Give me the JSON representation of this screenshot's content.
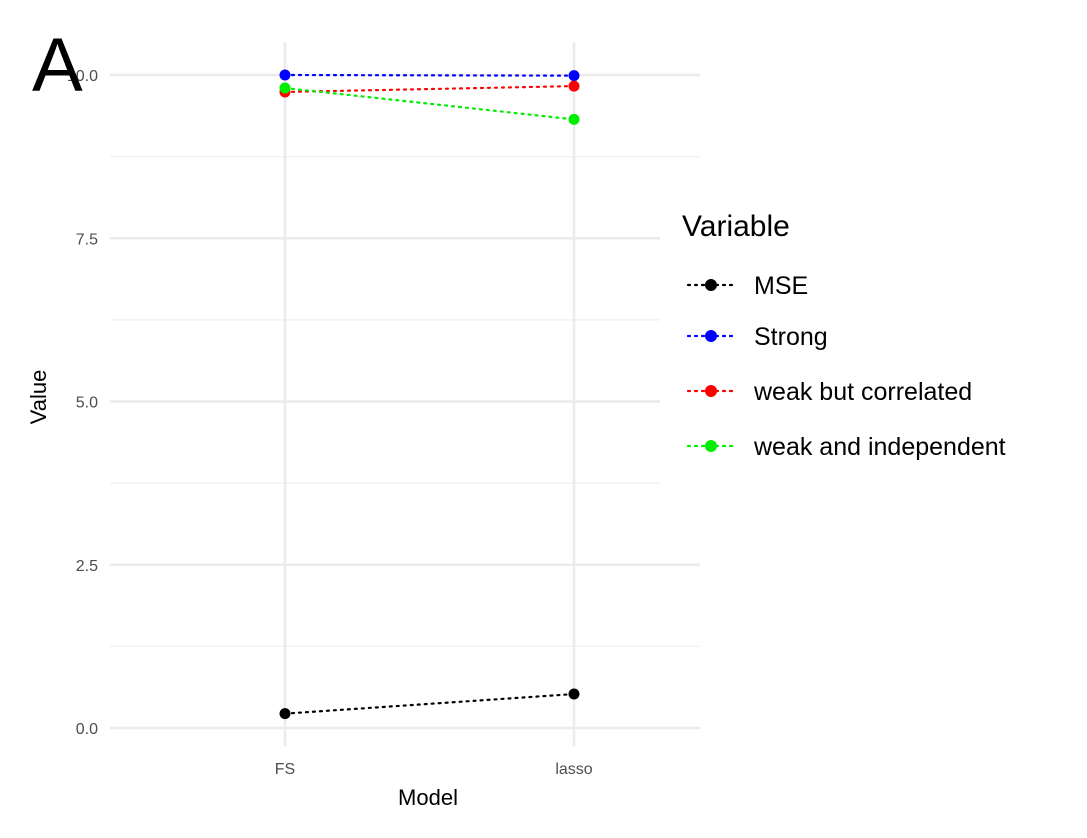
{
  "panel_label": "A",
  "chart_data": {
    "type": "line",
    "line_style": "dotted",
    "categories": [
      "FS",
      "lasso"
    ],
    "xlabel": "Model",
    "ylabel": "Value",
    "ylim": [
      0,
      10
    ],
    "yticks": [
      0.0,
      2.5,
      5.0,
      7.5,
      10.0
    ],
    "ytick_labels": [
      "0.0",
      "2.5",
      "5.0",
      "7.5",
      "10.0"
    ],
    "grid": true,
    "legend": {
      "title": "Variable",
      "position": "right"
    },
    "series": [
      {
        "name": "MSE",
        "color": "#000000",
        "values": [
          0.22,
          0.52
        ]
      },
      {
        "name": "Strong",
        "color": "#0000ff",
        "values": [
          10.0,
          9.99
        ]
      },
      {
        "name": "weak but correlated",
        "color": "#ff0000",
        "values": [
          9.74,
          9.83
        ]
      },
      {
        "name": "weak and independent",
        "color": "#00ee00",
        "values": [
          9.8,
          9.32
        ]
      }
    ]
  }
}
